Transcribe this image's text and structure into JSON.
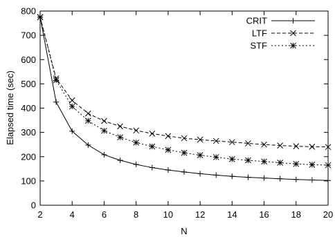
{
  "chart_data": {
    "type": "line",
    "xlabel": "N",
    "ylabel": "Elapsed time (sec)",
    "xlim": [
      2,
      20
    ],
    "ylim": [
      0,
      800
    ],
    "xticks": [
      2,
      4,
      6,
      8,
      10,
      12,
      14,
      16,
      18,
      20
    ],
    "yticks": [
      0,
      100,
      200,
      300,
      400,
      500,
      600,
      700,
      800
    ],
    "grid": false,
    "legend_position": "top-right",
    "x": [
      2,
      3,
      4,
      5,
      6,
      7,
      8,
      9,
      10,
      11,
      12,
      13,
      14,
      15,
      16,
      17,
      18,
      19,
      20
    ],
    "series": [
      {
        "name": "CRIT",
        "marker": "plus",
        "dash": "solid",
        "values": [
          775,
          425,
          305,
          248,
          208,
          185,
          168,
          155,
          145,
          137,
          130,
          124,
          119,
          115,
          112,
          109,
          106,
          104,
          102
        ]
      },
      {
        "name": "LTF",
        "marker": "cross",
        "dash": "dashed",
        "values": [
          775,
          522,
          432,
          378,
          347,
          325,
          308,
          295,
          285,
          276,
          270,
          265,
          260,
          255,
          250,
          246,
          243,
          241,
          240
        ]
      },
      {
        "name": "STF",
        "marker": "star",
        "dash": "dotted",
        "values": [
          775,
          515,
          407,
          348,
          307,
          280,
          258,
          242,
          228,
          216,
          206,
          198,
          190,
          185,
          180,
          175,
          170,
          167,
          165
        ]
      }
    ]
  }
}
